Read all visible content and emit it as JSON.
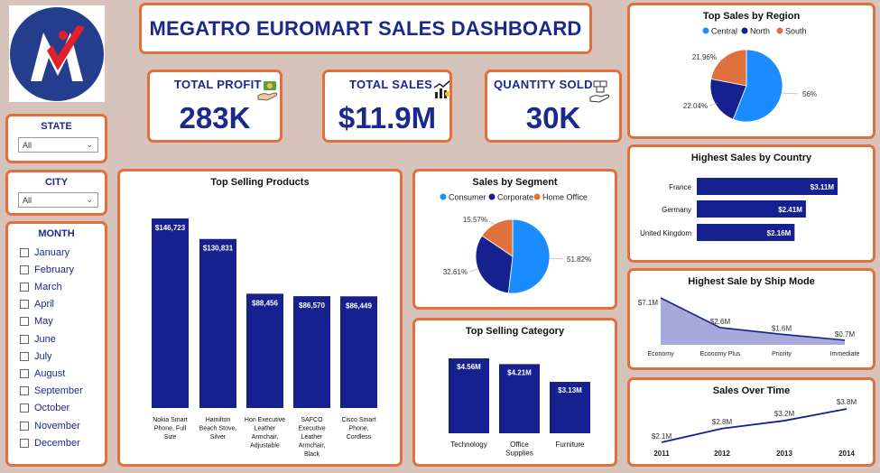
{
  "dashboard": {
    "title": "MEGATRO EUROMART SALES DASHBOARD"
  },
  "kpis": {
    "profit": {
      "label": "TOTAL PROFIT",
      "value": "283K",
      "icon": "money-hand-icon"
    },
    "sales": {
      "label": "TOTAL SALES",
      "value": "$11.9M",
      "icon": "growth-chart-icon"
    },
    "quantity": {
      "label": "QUANTITY SOLD",
      "value": "30K",
      "icon": "box-hand-icon"
    }
  },
  "filters": {
    "state": {
      "label": "STATE",
      "value": "All"
    },
    "city": {
      "label": "CITY",
      "value": "All"
    },
    "month": {
      "label": "MONTH",
      "options": [
        "January",
        "February",
        "March",
        "April",
        "May",
        "June",
        "July",
        "August",
        "September",
        "October",
        "November",
        "December"
      ]
    }
  },
  "colors": {
    "navy": "#16208f",
    "blue": "#1a8cff",
    "orange": "#e0703c",
    "lavender": "#a7a9dc"
  },
  "chart_data": [
    {
      "id": "top_selling_products",
      "type": "bar",
      "title": "Top Selling Products",
      "categories": [
        [
          "Nokia Smart",
          "Phone, Full",
          "Size"
        ],
        [
          "Hamilton",
          "Beach Stove,",
          "Silver"
        ],
        [
          "Hon Executive",
          "Leather",
          "Armchair,",
          "Adjustable"
        ],
        [
          "SAFCO",
          "Executive",
          "Leather",
          "Armchair,",
          "Black"
        ],
        [
          "Cisco Smart",
          "Phone,",
          "Cordless"
        ]
      ],
      "values": [
        146723,
        130831,
        88456,
        86570,
        86449
      ],
      "data_labels": [
        "$146,723",
        "$130,831",
        "$88,456",
        "$86,570",
        "$86,449"
      ],
      "ylim": [
        0,
        160000
      ]
    },
    {
      "id": "top_sales_by_region",
      "type": "pie",
      "title": "Top Sales by Region",
      "legend": [
        "Central",
        "North",
        "South"
      ],
      "values": [
        56,
        22.04,
        21.96
      ],
      "data_labels": [
        "56%",
        "22.04%",
        "21.96%"
      ],
      "colors": [
        "#1a8cff",
        "#16208f",
        "#e0703c"
      ]
    },
    {
      "id": "sales_by_segment",
      "type": "pie",
      "title": "Sales by Segment",
      "legend": [
        "Consumer",
        "Corporate",
        "Home Office"
      ],
      "values": [
        51.82,
        32.61,
        15.57
      ],
      "data_labels": [
        "51.82%",
        "32.61%",
        "15.57%"
      ],
      "colors": [
        "#1a8cff",
        "#16208f",
        "#e0703c"
      ]
    },
    {
      "id": "highest_sales_by_country",
      "type": "bar",
      "title": "Highest Sales by Country",
      "categories": [
        "France",
        "Germany",
        "United Kingdom"
      ],
      "values": [
        3.11,
        2.41,
        2.16
      ],
      "data_labels": [
        "$3.11M",
        "$2.41M",
        "$2.16M"
      ],
      "xlim": [
        0,
        3.11
      ]
    },
    {
      "id": "top_selling_category",
      "type": "bar",
      "title": "Top Selling Category",
      "categories": [
        [
          "Technology"
        ],
        [
          "Office",
          "Supplies"
        ],
        [
          "Furniture"
        ]
      ],
      "values": [
        4.56,
        4.21,
        3.13
      ],
      "data_labels": [
        "$4.56M",
        "$4.21M",
        "$3.13M"
      ],
      "ylim": [
        0,
        4.56
      ]
    },
    {
      "id": "highest_sale_by_ship_mode",
      "type": "area",
      "title": "Highest Sale by Ship Mode",
      "categories": [
        "Economy",
        "Economy Plus",
        "Priority",
        "Immediate"
      ],
      "values": [
        7.1,
        2.6,
        1.6,
        0.7
      ],
      "data_labels": [
        "$7.1M",
        "$2.6M",
        "$1.6M",
        "$0.7M"
      ],
      "ylim": [
        0,
        7.1
      ]
    },
    {
      "id": "sales_over_time",
      "type": "line",
      "title": "Sales Over Time",
      "categories": [
        "2011",
        "2012",
        "2013",
        "2014"
      ],
      "values": [
        2.1,
        2.8,
        3.2,
        3.8
      ],
      "data_labels": [
        "$2.1M",
        "$2.8M",
        "$3.2M",
        "$3.8M"
      ],
      "ylim": [
        2.1,
        3.8
      ]
    }
  ]
}
